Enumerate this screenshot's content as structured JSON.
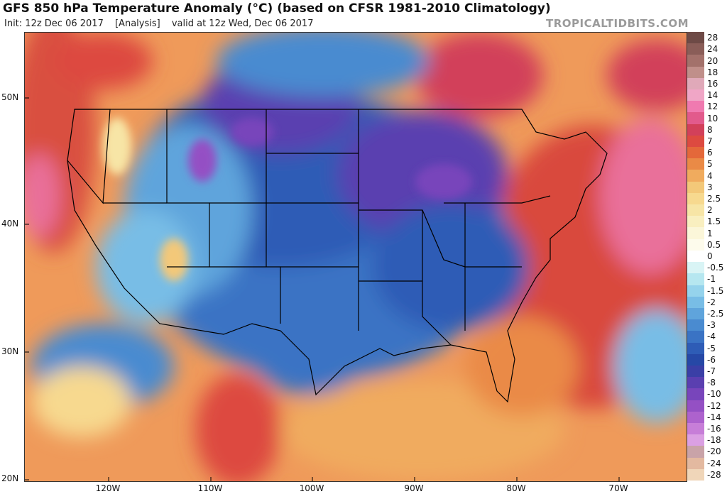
{
  "header": {
    "title": "GFS 850 hPa Temperature Anomaly (°C) (based on CFSR 1981-2010 Climatology)",
    "init": "Init: 12z Dec 06 2017",
    "analysis": "[Analysis]",
    "valid": "valid at 12z Wed, Dec 06 2017",
    "brand": "TROPICALTIDBITS.COM"
  },
  "map": {
    "lat_labels": [
      "50N",
      "40N",
      "30N",
      "20N"
    ],
    "lon_labels": [
      "120W",
      "110W",
      "100W",
      "90W",
      "80W",
      "70W"
    ]
  },
  "legend": {
    "labels": [
      "28",
      "24",
      "20",
      "18",
      "16",
      "14",
      "12",
      "10",
      "8",
      "7",
      "6",
      "5",
      "4",
      "3",
      "2.5",
      "2",
      "1.5",
      "1",
      "0.5",
      "0",
      "-0.5",
      "-1",
      "-1.5",
      "-2",
      "-2.5",
      "-3",
      "-4",
      "-5",
      "-6",
      "-7",
      "-8",
      "-10",
      "-12",
      "-14",
      "-16",
      "-18",
      "-20",
      "-24",
      "-28"
    ],
    "colors": [
      "#6e4a46",
      "#8a5d58",
      "#a3716b",
      "#c08f8a",
      "#e0a9b9",
      "#f0a6c6",
      "#f07ab0",
      "#e25a8c",
      "#d2405a",
      "#dd4a40",
      "#e4683a",
      "#ea8a46",
      "#f0ab5e",
      "#f3c879",
      "#f7d98f",
      "#f7e5a6",
      "#f9efc0",
      "#fbf6d9",
      "#fdfbec",
      "#ffffff",
      "#d9f4f5",
      "#b6e7f0",
      "#95d3ec",
      "#78bde6",
      "#5fa4dc",
      "#4a8bd0",
      "#3a73c4",
      "#2e5cb6",
      "#2648a6",
      "#3a3fa6",
      "#5a3fb0",
      "#7845bb",
      "#9450c4",
      "#ad62cd",
      "#c77ed8",
      "#dba0e3",
      "#c9a3a8",
      "#e3b9a0",
      "#f0d6b9"
    ]
  }
}
